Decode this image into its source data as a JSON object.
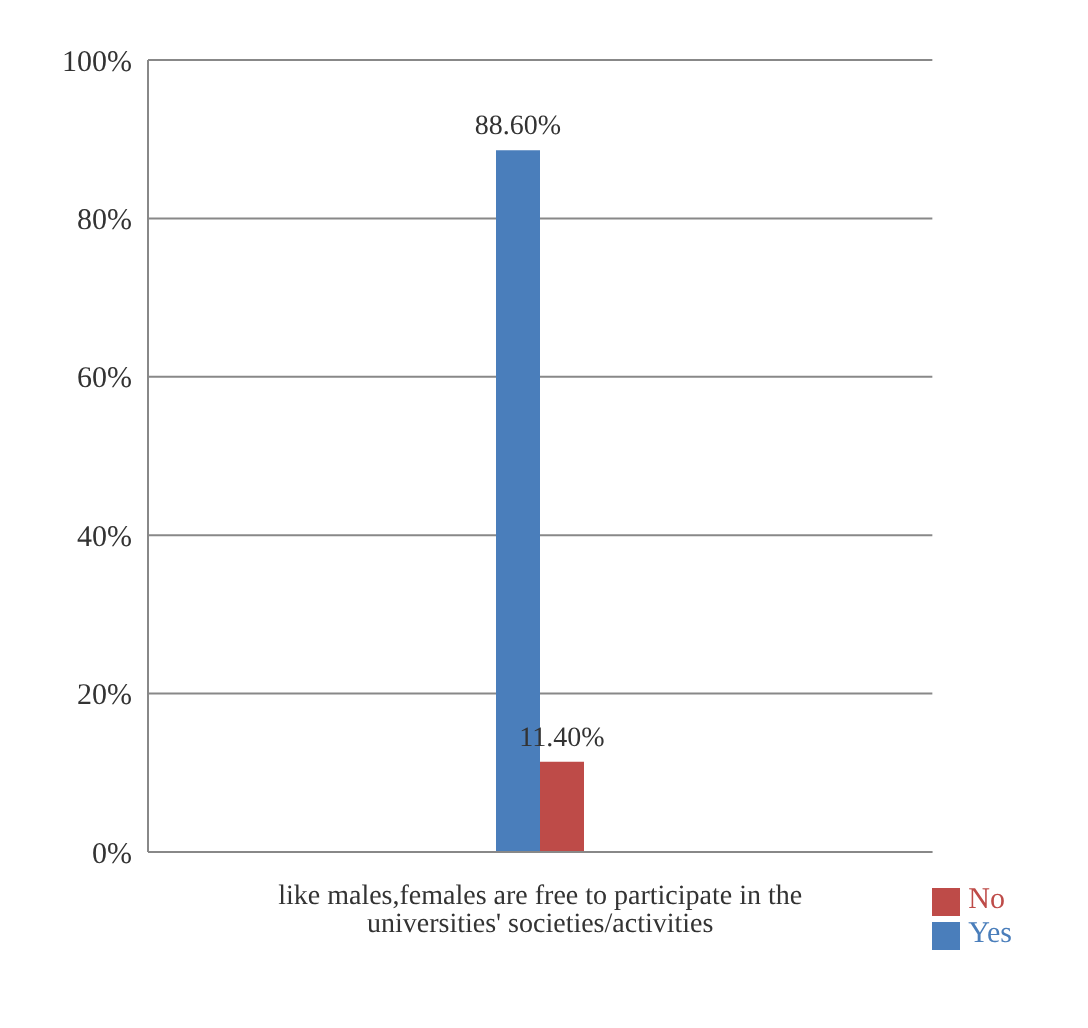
{
  "chart_data": {
    "type": "bar",
    "categories": [
      "like males,females are free to participate in the universities' societies/activities"
    ],
    "series": [
      {
        "name": "Yes",
        "color": "#4a7ebb",
        "values": [
          88.6
        ],
        "value_labels": [
          "88.60%"
        ]
      },
      {
        "name": "No",
        "color": "#be4b48",
        "values": [
          11.4
        ],
        "value_labels": [
          "11.40%"
        ]
      }
    ],
    "ylim": [
      0,
      100
    ],
    "yticks": [
      {
        "value": 0,
        "label": "0%"
      },
      {
        "value": 20,
        "label": "20%"
      },
      {
        "value": 40,
        "label": "40%"
      },
      {
        "value": 60,
        "label": "60%"
      },
      {
        "value": 80,
        "label": "80%"
      },
      {
        "value": 100,
        "label": "100%"
      }
    ],
    "grid": "y",
    "legend": "bottom right"
  }
}
